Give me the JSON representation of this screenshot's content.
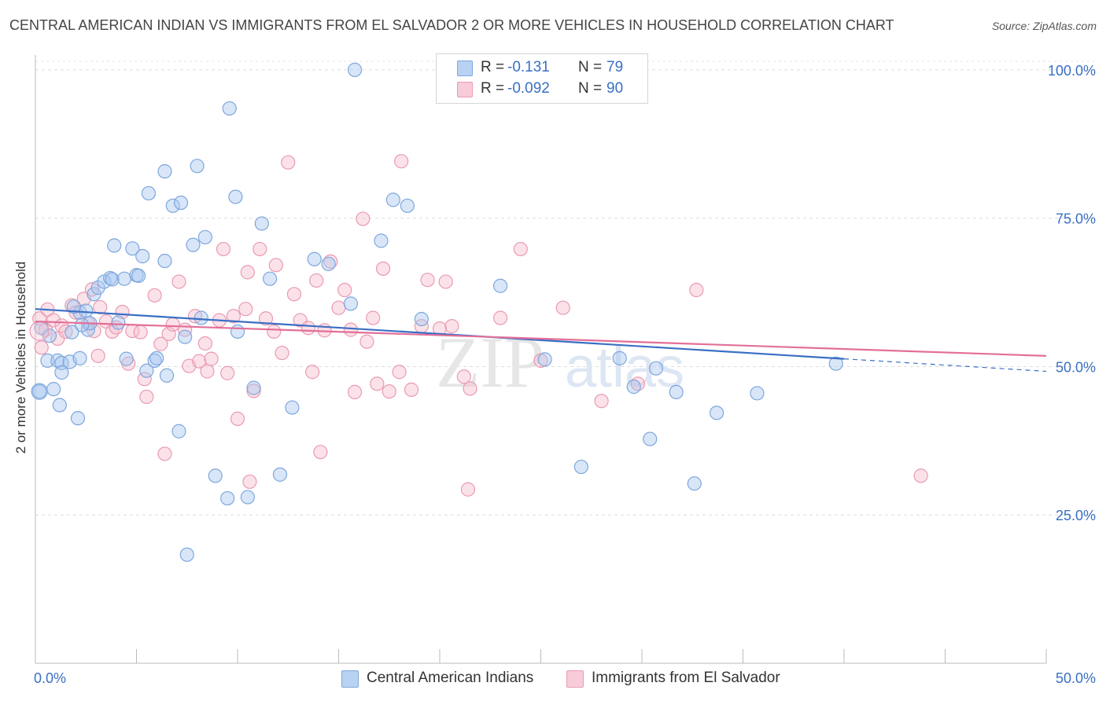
{
  "header": {
    "title": "CENTRAL AMERICAN INDIAN VS IMMIGRANTS FROM EL SALVADOR 2 OR MORE VEHICLES IN HOUSEHOLD CORRELATION CHART",
    "source": "Source: ZipAtlas.com"
  },
  "watermark": {
    "zip": "ZIP",
    "atlas": "atlas"
  },
  "legend": {
    "r_label": "R =",
    "n_label": "N =",
    "series": [
      {
        "r": "-0.131",
        "n": "79",
        "color": "#9fc2ec"
      },
      {
        "r": "-0.092",
        "n": "90",
        "color": "#f3b3c6"
      }
    ]
  },
  "bottom_legend": [
    "Central American Indians",
    "Immigrants from El Salvador"
  ],
  "colors": {
    "blue": "#3a6fc4",
    "pink": "#e36f98",
    "blue_fill": "#a9c8f0",
    "pink_fill": "#f6bfcf"
  },
  "chart_data": {
    "type": "scatter",
    "title": "CENTRAL AMERICAN INDIAN VS IMMIGRANTS FROM EL SALVADOR 2 OR MORE VEHICLES IN HOUSEHOLD CORRELATION CHART",
    "xlabel": "",
    "ylabel": "2 or more Vehicles in Household",
    "xlim": [
      0,
      50
    ],
    "ylim": [
      0,
      102.5
    ],
    "x_ticks": [
      "0.0%",
      "50.0%"
    ],
    "y_ticks": [
      {
        "value": 25,
        "label": "25.0%"
      },
      {
        "value": 50,
        "label": "50.0%"
      },
      {
        "value": 75,
        "label": "75.0%"
      },
      {
        "value": 100,
        "label": "100.0%"
      }
    ],
    "grid": true,
    "legend_position": "top-center",
    "series": [
      {
        "name": "Central American Indians",
        "color": "#3a6fc4",
        "trend": {
          "x0": 0,
          "y0": 59.7,
          "x1": 40,
          "y1": 51.3,
          "dash_to_x": 50,
          "dash_to_y": 49.2
        },
        "points": [
          [
            0.2,
            45.8
          ],
          [
            0.3,
            56.5
          ],
          [
            0.6,
            51.0
          ],
          [
            0.7,
            55.2
          ],
          [
            0.9,
            46.2
          ],
          [
            1.1,
            51.0
          ],
          [
            1.2,
            43.5
          ],
          [
            1.3,
            50.6
          ],
          [
            1.3,
            49.0
          ],
          [
            1.7,
            50.8
          ],
          [
            1.8,
            55.8
          ],
          [
            2.1,
            41.3
          ],
          [
            2.2,
            51.4
          ],
          [
            2.2,
            59.1
          ],
          [
            2.5,
            59.4
          ],
          [
            2.6,
            56.2
          ],
          [
            2.7,
            57.3
          ],
          [
            2.9,
            62.2
          ],
          [
            3.1,
            63.3
          ],
          [
            3.4,
            64.3
          ],
          [
            3.7,
            64.9
          ],
          [
            3.8,
            64.7
          ],
          [
            3.9,
            70.4
          ],
          [
            4.1,
            57.4
          ],
          [
            4.4,
            64.8
          ],
          [
            4.5,
            51.3
          ],
          [
            4.8,
            69.9
          ],
          [
            5.0,
            65.4
          ],
          [
            5.1,
            65.3
          ],
          [
            5.3,
            68.6
          ],
          [
            5.5,
            49.3
          ],
          [
            5.6,
            79.2
          ],
          [
            5.9,
            51.0
          ],
          [
            6.0,
            51.4
          ],
          [
            6.4,
            67.8
          ],
          [
            6.5,
            48.5
          ],
          [
            6.4,
            82.9
          ],
          [
            6.8,
            77.1
          ],
          [
            7.1,
            39.1
          ],
          [
            7.2,
            77.6
          ],
          [
            7.4,
            55.0
          ],
          [
            7.8,
            70.5
          ],
          [
            8.0,
            83.8
          ],
          [
            8.2,
            58.2
          ],
          [
            8.4,
            71.8
          ],
          [
            8.9,
            31.6
          ],
          [
            9.5,
            27.8
          ],
          [
            9.6,
            93.5
          ],
          [
            9.9,
            78.6
          ],
          [
            10.0,
            55.9
          ],
          [
            10.5,
            28.0
          ],
          [
            10.8,
            46.4
          ],
          [
            11.2,
            74.1
          ],
          [
            11.6,
            64.8
          ],
          [
            12.1,
            31.8
          ],
          [
            12.7,
            43.1
          ],
          [
            13.8,
            68.1
          ],
          [
            14.5,
            67.3
          ],
          [
            15.6,
            60.6
          ],
          [
            15.8,
            100.0
          ],
          [
            17.1,
            71.2
          ],
          [
            17.7,
            78.1
          ],
          [
            18.4,
            77.1
          ],
          [
            19.1,
            58.0
          ],
          [
            23.0,
            63.6
          ],
          [
            25.2,
            51.2
          ],
          [
            27.0,
            33.1
          ],
          [
            28.9,
            51.4
          ],
          [
            29.6,
            46.6
          ],
          [
            30.4,
            37.8
          ],
          [
            30.7,
            49.7
          ],
          [
            31.7,
            45.7
          ],
          [
            32.6,
            30.3
          ],
          [
            33.7,
            42.2
          ],
          [
            35.7,
            45.5
          ],
          [
            39.6,
            50.5
          ],
          [
            7.5,
            18.3
          ],
          [
            2.3,
            57.0
          ],
          [
            1.9,
            60.1
          ]
        ]
      },
      {
        "name": "Immigrants from El Salvador",
        "color": "#e36f98",
        "trend": {
          "x0": 0,
          "y0": 57.6,
          "x1": 50,
          "y1": 51.8
        },
        "points": [
          [
            0.2,
            58.1
          ],
          [
            0.3,
            53.2
          ],
          [
            0.5,
            56.2
          ],
          [
            0.6,
            59.6
          ],
          [
            0.9,
            57.8
          ],
          [
            1.1,
            54.7
          ],
          [
            1.3,
            56.9
          ],
          [
            1.5,
            55.9
          ],
          [
            1.8,
            60.3
          ],
          [
            2.0,
            59.1
          ],
          [
            2.4,
            61.4
          ],
          [
            2.6,
            57.3
          ],
          [
            2.8,
            63.0
          ],
          [
            2.9,
            56.0
          ],
          [
            3.1,
            51.8
          ],
          [
            3.2,
            60.0
          ],
          [
            3.5,
            57.6
          ],
          [
            3.8,
            55.9
          ],
          [
            4.0,
            56.6
          ],
          [
            4.3,
            59.2
          ],
          [
            4.6,
            50.5
          ],
          [
            4.8,
            56.0
          ],
          [
            5.2,
            55.8
          ],
          [
            5.4,
            47.9
          ],
          [
            5.5,
            44.9
          ],
          [
            5.9,
            62.0
          ],
          [
            6.2,
            53.8
          ],
          [
            6.4,
            35.3
          ],
          [
            6.6,
            55.5
          ],
          [
            6.8,
            57.1
          ],
          [
            7.1,
            64.3
          ],
          [
            7.4,
            56.2
          ],
          [
            7.6,
            50.1
          ],
          [
            7.9,
            58.5
          ],
          [
            8.1,
            50.9
          ],
          [
            8.4,
            53.9
          ],
          [
            8.5,
            49.2
          ],
          [
            8.7,
            51.3
          ],
          [
            9.1,
            57.8
          ],
          [
            9.3,
            69.8
          ],
          [
            9.5,
            48.9
          ],
          [
            9.8,
            58.5
          ],
          [
            10.0,
            41.2
          ],
          [
            10.4,
            59.7
          ],
          [
            10.5,
            65.9
          ],
          [
            10.6,
            30.6
          ],
          [
            10.8,
            45.9
          ],
          [
            11.1,
            69.8
          ],
          [
            11.4,
            58.1
          ],
          [
            11.8,
            55.9
          ],
          [
            11.9,
            67.1
          ],
          [
            12.2,
            52.3
          ],
          [
            12.5,
            84.4
          ],
          [
            12.8,
            62.2
          ],
          [
            13.1,
            57.8
          ],
          [
            13.5,
            56.5
          ],
          [
            13.7,
            49.1
          ],
          [
            13.9,
            64.5
          ],
          [
            14.1,
            35.6
          ],
          [
            14.3,
            56.1
          ],
          [
            14.6,
            67.7
          ],
          [
            15.0,
            59.9
          ],
          [
            15.3,
            62.9
          ],
          [
            15.6,
            56.2
          ],
          [
            15.8,
            45.7
          ],
          [
            16.2,
            74.9
          ],
          [
            16.4,
            54.2
          ],
          [
            16.7,
            58.2
          ],
          [
            16.9,
            47.1
          ],
          [
            17.2,
            66.5
          ],
          [
            17.5,
            45.8
          ],
          [
            18.0,
            49.1
          ],
          [
            18.1,
            84.6
          ],
          [
            18.6,
            46.1
          ],
          [
            19.1,
            56.8
          ],
          [
            19.4,
            64.6
          ],
          [
            20.0,
            56.4
          ],
          [
            20.3,
            64.3
          ],
          [
            20.6,
            56.8
          ],
          [
            21.2,
            48.3
          ],
          [
            21.4,
            29.3
          ],
          [
            21.5,
            46.3
          ],
          [
            23.0,
            58.2
          ],
          [
            24.0,
            69.8
          ],
          [
            25.0,
            51.0
          ],
          [
            26.1,
            59.9
          ],
          [
            28.0,
            44.2
          ],
          [
            29.8,
            47.1
          ],
          [
            32.7,
            62.9
          ],
          [
            43.8,
            31.6
          ]
        ]
      }
    ]
  }
}
